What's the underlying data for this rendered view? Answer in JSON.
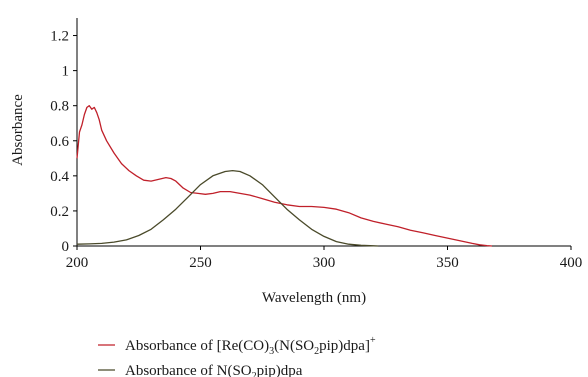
{
  "chart_data": {
    "type": "line",
    "title": "",
    "xlabel": "Wavelength (nm)",
    "ylabel": "Absorbance",
    "xlim": [
      200,
      400
    ],
    "ylim": [
      0,
      1.3
    ],
    "x_ticks": [
      "200",
      "250",
      "300",
      "350",
      "400"
    ],
    "y_ticks": [
      "0",
      "0.2",
      "0.4",
      "0.6",
      "0.8",
      "1",
      "1.2"
    ],
    "grid": false,
    "legend_position": "bottom",
    "series": [
      {
        "name": "Absorbance of [Re(CO)3(N(SO2pip)dpa]+",
        "color": "#c0202a",
        "x": [
          200,
          201,
          202,
          203,
          204,
          205,
          206,
          207,
          208,
          209,
          210,
          212,
          215,
          218,
          221,
          224,
          227,
          230,
          233,
          236,
          238,
          240,
          243,
          246,
          249,
          252,
          255,
          258,
          262,
          266,
          270,
          275,
          280,
          285,
          290,
          295,
          300,
          305,
          310,
          315,
          320,
          325,
          330,
          335,
          340,
          345,
          350,
          355,
          360,
          363,
          366,
          368
        ],
        "y": [
          0.5,
          0.65,
          0.69,
          0.75,
          0.79,
          0.8,
          0.78,
          0.79,
          0.76,
          0.72,
          0.66,
          0.6,
          0.53,
          0.47,
          0.43,
          0.4,
          0.375,
          0.37,
          0.38,
          0.39,
          0.385,
          0.37,
          0.33,
          0.305,
          0.3,
          0.295,
          0.3,
          0.31,
          0.31,
          0.3,
          0.29,
          0.27,
          0.25,
          0.235,
          0.225,
          0.225,
          0.22,
          0.21,
          0.19,
          0.16,
          0.14,
          0.125,
          0.11,
          0.09,
          0.075,
          0.06,
          0.045,
          0.03,
          0.015,
          0.007,
          0.002,
          0.0
        ]
      },
      {
        "name": "Absorbance of N(SO2pip)dpa",
        "color": "#4a4a2a",
        "x": [
          200,
          205,
          210,
          215,
          220,
          225,
          230,
          235,
          240,
          245,
          250,
          255,
          260,
          263,
          266,
          270,
          275,
          280,
          285,
          290,
          295,
          300,
          305,
          310,
          315,
          320,
          322
        ],
        "y": [
          0.01,
          0.012,
          0.015,
          0.022,
          0.035,
          0.06,
          0.095,
          0.15,
          0.21,
          0.28,
          0.35,
          0.4,
          0.425,
          0.43,
          0.425,
          0.4,
          0.35,
          0.28,
          0.21,
          0.15,
          0.095,
          0.055,
          0.025,
          0.01,
          0.004,
          0.001,
          0.0
        ]
      }
    ]
  },
  "legend": {
    "series_0": {
      "prefix": "Absorbance of [Re(CO)",
      "sub1": "3",
      "mid": "(N(SO",
      "sub2": "2",
      "tail": "pip)dpa]",
      "sup": "+"
    },
    "series_1": {
      "prefix": "Absorbance of N(SO",
      "sub1": "2",
      "tail": "pip)dpa"
    }
  }
}
